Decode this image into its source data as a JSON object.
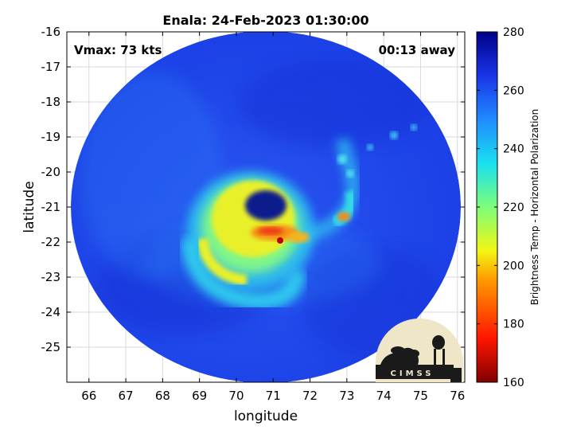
{
  "title": "Enala: 24-Feb-2023 01:30:00",
  "vmax_text": "Vmax: 73 kts",
  "time_text": "00:13 away",
  "logo_text": "CIMSS",
  "colors": {
    "background_swath": "#1e46ea",
    "eye": "#0a1a8c",
    "eyewall": "#e6ec2a",
    "hot": "#ee3a12",
    "accent_cyan": "#33cfe6",
    "grid": "#d9d9d9"
  },
  "chart_data": {
    "type": "heatmap",
    "xlabel": "longitude",
    "ylabel": "latitude",
    "xlim": [
      65.4,
      76.2
    ],
    "ylim": [
      -26,
      -16
    ],
    "xticks": [
      66,
      67,
      68,
      69,
      70,
      71,
      72,
      73,
      74,
      75,
      76
    ],
    "yticks": [
      -16,
      -17,
      -18,
      -19,
      -20,
      -21,
      -22,
      -23,
      -24,
      -25
    ],
    "xtick_labels": [
      "66",
      "67",
      "68",
      "69",
      "70",
      "71",
      "72",
      "73",
      "74",
      "75",
      "76"
    ],
    "ytick_labels": [
      "-16",
      "-17",
      "-18",
      "-19",
      "-20",
      "-21",
      "-22",
      "-23",
      "-24",
      "-25"
    ],
    "grid": true,
    "storm_center": {
      "lon": 70.9,
      "lat": -20.95
    },
    "colorbar": {
      "label": "Brightness Temp - Horizontal Polarization",
      "range": [
        160,
        280
      ],
      "ticks": [
        160,
        180,
        200,
        220,
        240,
        260,
        280
      ],
      "tick_labels": [
        "160",
        "180",
        "200",
        "220",
        "240",
        "260",
        "280"
      ],
      "stops": [
        {
          "value": 160,
          "color": "#800000"
        },
        {
          "value": 175,
          "color": "#ff1500"
        },
        {
          "value": 195,
          "color": "#ff9a00"
        },
        {
          "value": 205,
          "color": "#f2f514"
        },
        {
          "value": 220,
          "color": "#7cff7a"
        },
        {
          "value": 235,
          "color": "#19e0f0"
        },
        {
          "value": 250,
          "color": "#1f8bff"
        },
        {
          "value": 265,
          "color": "#1a34e8"
        },
        {
          "value": 280,
          "color": "#000088"
        }
      ]
    }
  }
}
